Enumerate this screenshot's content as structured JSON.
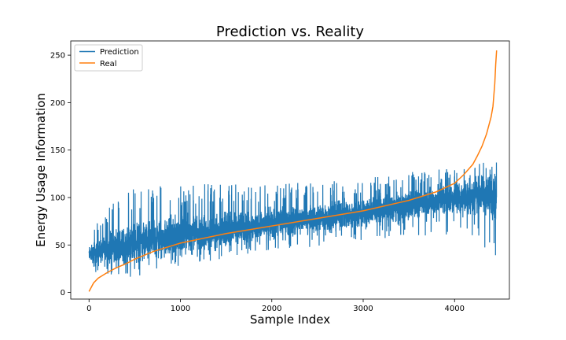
{
  "chart_data": {
    "type": "line",
    "title": "Prediction vs. Reality",
    "xlabel": "Sample Index",
    "ylabel": "Energy Usage Information",
    "xlim": [
      -200,
      4600
    ],
    "ylim": [
      -7,
      265
    ],
    "xticks": [
      0,
      1000,
      2000,
      3000,
      4000
    ],
    "yticks": [
      0,
      50,
      100,
      150,
      200,
      250
    ],
    "legend_position": "upper-left",
    "grid": false,
    "series": [
      {
        "name": "Prediction",
        "color": "#1f77b4",
        "n_points": 4460,
        "noisy": true,
        "envelope_x": [
          0,
          200,
          500,
          1000,
          1500,
          2000,
          2500,
          3000,
          3500,
          4000,
          4300,
          4450
        ],
        "mean": [
          40,
          45,
          52,
          60,
          66,
          72,
          78,
          84,
          92,
          100,
          102,
          100
        ],
        "low": [
          25,
          18,
          18,
          28,
          38,
          45,
          50,
          55,
          62,
          60,
          50,
          40
        ],
        "high": [
          60,
          90,
          110,
          112,
          112,
          112,
          115,
          118,
          125,
          132,
          135,
          138
        ],
        "spike_max": 131
      },
      {
        "name": "Real",
        "color": "#ff7f0e",
        "x": [
          0,
          50,
          100,
          200,
          300,
          400,
          500,
          700,
          1000,
          1500,
          2000,
          2500,
          3000,
          3500,
          3800,
          4000,
          4100,
          4200,
          4250,
          4300,
          4350,
          4400,
          4420,
          4440,
          4450,
          4460
        ],
        "y": [
          1,
          10,
          15,
          21,
          26,
          30,
          35,
          43,
          52,
          62,
          70,
          78,
          86,
          97,
          106,
          115,
          124,
          135,
          144,
          154,
          167,
          185,
          196,
          220,
          240,
          255
        ]
      }
    ]
  }
}
